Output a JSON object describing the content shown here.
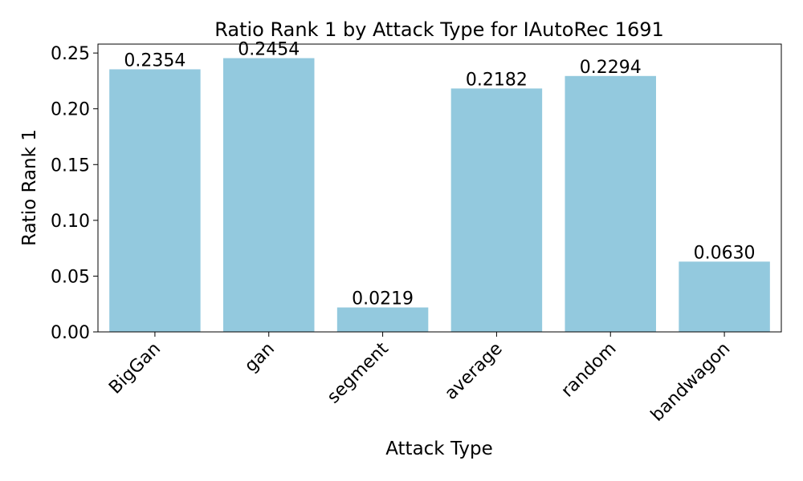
{
  "chart_data": {
    "type": "bar",
    "title": "Ratio Rank 1 by Attack Type for IAutoRec 1691",
    "xlabel": "Attack Type",
    "ylabel": "Ratio Rank 1",
    "categories": [
      "BigGan",
      "gan",
      "segment",
      "average",
      "random",
      "bandwagon"
    ],
    "values": [
      0.2354,
      0.2454,
      0.0219,
      0.2182,
      0.2294,
      0.063
    ],
    "value_labels": [
      "0.2354",
      "0.2454",
      "0.0219",
      "0.2182",
      "0.2294",
      "0.0630"
    ],
    "ylim": [
      0,
      0.258
    ],
    "yticks": [
      0.0,
      0.05,
      0.1,
      0.15,
      0.2,
      0.25
    ],
    "ytick_labels": [
      "0.00",
      "0.05",
      "0.10",
      "0.15",
      "0.20",
      "0.25"
    ],
    "bar_color": "#93c9de",
    "grid": false,
    "legend": "none"
  }
}
